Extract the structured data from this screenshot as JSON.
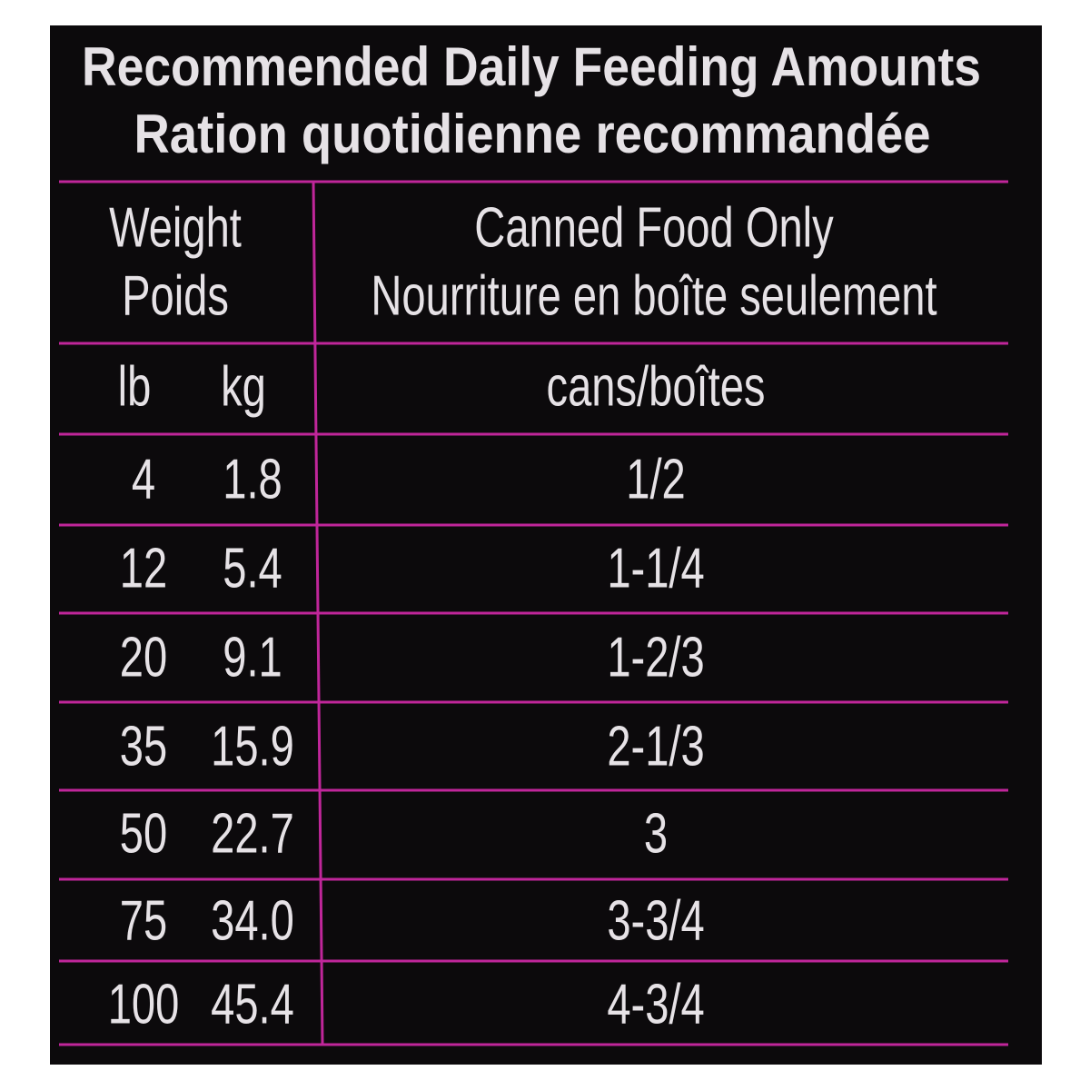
{
  "header": {
    "title_en": "Recommended Daily Feeding Amounts",
    "title_fr": "Ration quotidienne recommandée"
  },
  "table": {
    "header": {
      "weight": [
        "Weight",
        "Poids"
      ],
      "food": [
        "Canned Food Only",
        "Nourriture en boîte seulement"
      ]
    },
    "units": [
      "lb",
      "kg",
      "cans/boîtes"
    ],
    "rows": [
      [
        "4",
        "1.8",
        "1/2"
      ],
      [
        "12",
        "5.4",
        "1-1/4"
      ],
      [
        "20",
        "9.1",
        "1-2/3"
      ],
      [
        "35",
        "15.9",
        "2-1/3"
      ],
      [
        "50",
        "22.7",
        "3"
      ],
      [
        "75",
        "34.0",
        "3-3/4"
      ],
      [
        "100",
        "45.4",
        "4-3/4"
      ]
    ]
  }
}
